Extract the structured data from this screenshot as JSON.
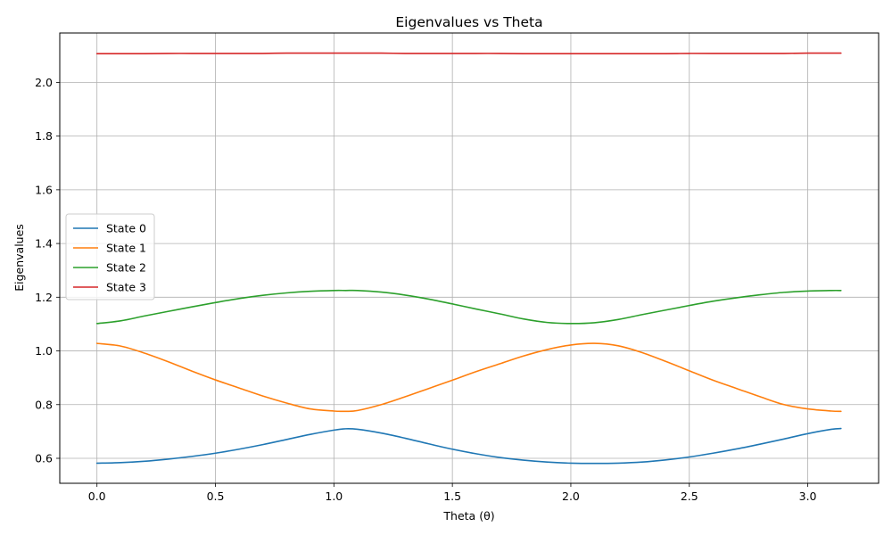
{
  "chart_data": {
    "type": "line",
    "title": "Eigenvalues vs Theta",
    "xlabel": "Theta (θ)",
    "ylabel": "Eigenvalues",
    "xlim": [
      -0.157,
      3.299
    ],
    "ylim": [
      0.507,
      2.184
    ],
    "xticks": [
      0.0,
      0.5,
      1.0,
      1.5,
      2.0,
      2.5,
      3.0
    ],
    "xtick_labels": [
      "0.0",
      "0.5",
      "1.0",
      "1.5",
      "2.0",
      "2.5",
      "3.0"
    ],
    "yticks": [
      0.6,
      0.8,
      1.0,
      1.2,
      1.4,
      1.6,
      1.8,
      2.0
    ],
    "ytick_labels": [
      "0.6",
      "0.8",
      "1.0",
      "1.2",
      "1.4",
      "1.6",
      "1.8",
      "2.0"
    ],
    "grid": true,
    "legend_position": "center-left",
    "x": [
      0.0,
      0.1,
      0.2,
      0.3,
      0.4,
      0.5,
      0.6,
      0.7,
      0.8,
      0.9,
      1.0,
      1.05,
      1.1,
      1.2,
      1.3,
      1.4,
      1.5,
      1.6,
      1.7,
      1.8,
      1.9,
      2.0,
      2.1,
      2.2,
      2.3,
      2.4,
      2.5,
      2.6,
      2.7,
      2.8,
      2.9,
      3.0,
      3.1,
      3.14
    ],
    "series": [
      {
        "name": "State 0",
        "color": "#1f77b4",
        "values": [
          0.582,
          0.584,
          0.589,
          0.597,
          0.607,
          0.619,
          0.634,
          0.651,
          0.67,
          0.689,
          0.705,
          0.71,
          0.708,
          0.694,
          0.675,
          0.654,
          0.634,
          0.617,
          0.603,
          0.593,
          0.586,
          0.582,
          0.581,
          0.582,
          0.586,
          0.594,
          0.605,
          0.619,
          0.635,
          0.653,
          0.672,
          0.692,
          0.708,
          0.711
        ]
      },
      {
        "name": "State 1",
        "color": "#ff7f0e",
        "values": [
          1.028,
          1.018,
          0.992,
          0.96,
          0.925,
          0.892,
          0.862,
          0.832,
          0.806,
          0.784,
          0.776,
          0.775,
          0.778,
          0.8,
          0.829,
          0.86,
          0.891,
          0.923,
          0.952,
          0.981,
          1.005,
          1.022,
          1.028,
          1.019,
          0.994,
          0.961,
          0.926,
          0.891,
          0.86,
          0.829,
          0.8,
          0.784,
          0.776,
          0.775
        ]
      },
      {
        "name": "State 2",
        "color": "#2ca02c",
        "values": [
          1.102,
          1.112,
          1.13,
          1.147,
          1.164,
          1.18,
          1.195,
          1.207,
          1.216,
          1.222,
          1.225,
          1.225,
          1.225,
          1.219,
          1.208,
          1.193,
          1.175,
          1.156,
          1.138,
          1.119,
          1.106,
          1.102,
          1.105,
          1.117,
          1.135,
          1.152,
          1.169,
          1.185,
          1.198,
          1.209,
          1.218,
          1.223,
          1.225,
          1.225
        ]
      },
      {
        "name": "State 3",
        "color": "#d62728",
        "values": [
          2.107,
          2.107,
          2.107,
          2.108,
          2.108,
          2.108,
          2.108,
          2.108,
          2.109,
          2.109,
          2.109,
          2.109,
          2.109,
          2.109,
          2.108,
          2.108,
          2.108,
          2.108,
          2.108,
          2.107,
          2.107,
          2.107,
          2.107,
          2.107,
          2.107,
          2.107,
          2.108,
          2.108,
          2.108,
          2.108,
          2.108,
          2.109,
          2.109,
          2.109
        ]
      }
    ]
  }
}
